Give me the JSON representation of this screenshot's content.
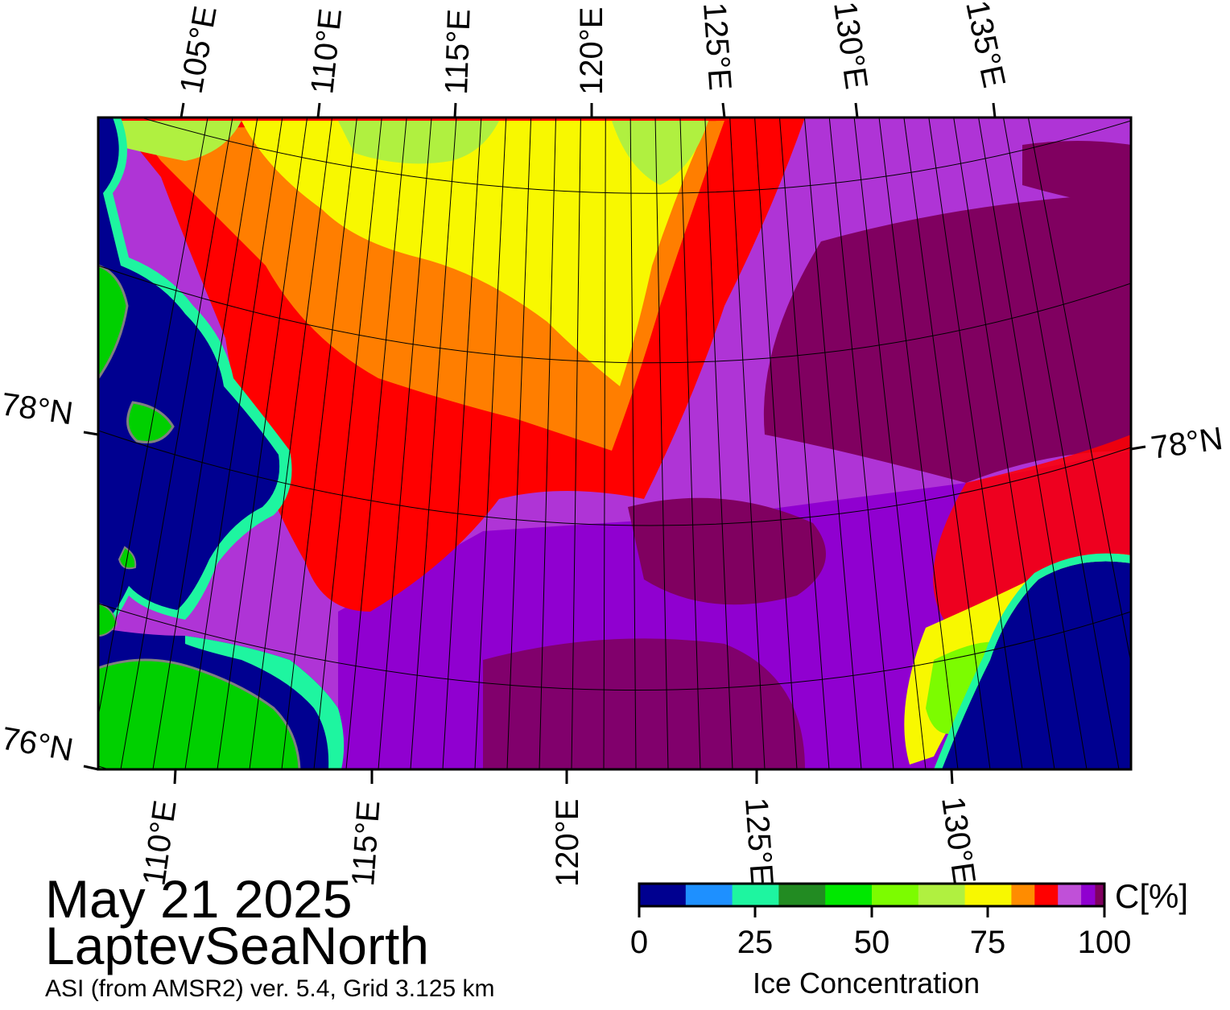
{
  "map": {
    "date": "May 21 2025",
    "region": "LaptevSeaNorth",
    "product": "ASI (from AMSR2) ver. 5.4,  Grid 3.125 km",
    "top_lon_labels": [
      "105°E",
      "110°E",
      "115°E",
      "120°E",
      "125°E",
      "130°E",
      "135°E"
    ],
    "bottom_lon_labels": [
      "110°E",
      "115°E",
      "120°E",
      "125°E",
      "130°E"
    ],
    "left_lat_labels": [
      "78°N",
      "76°N"
    ],
    "right_lat_labels": [
      "78°N"
    ],
    "colors": {
      "ocean": "#000090",
      "land": "#00d000",
      "coast": "#808080"
    }
  },
  "colorbar": {
    "title": "Ice Concentration",
    "unit": "C[%]",
    "ticks": [
      "0",
      "25",
      "50",
      "75",
      "100"
    ],
    "colors": [
      "#000090",
      "#1e90ff",
      "#1ef5a0",
      "#228b22",
      "#00e800",
      "#7cfc00",
      "#b0f040",
      "#f8f800",
      "#ff8c00",
      "#ff0000",
      "#c050d8",
      "#9000d0",
      "#800060"
    ]
  }
}
